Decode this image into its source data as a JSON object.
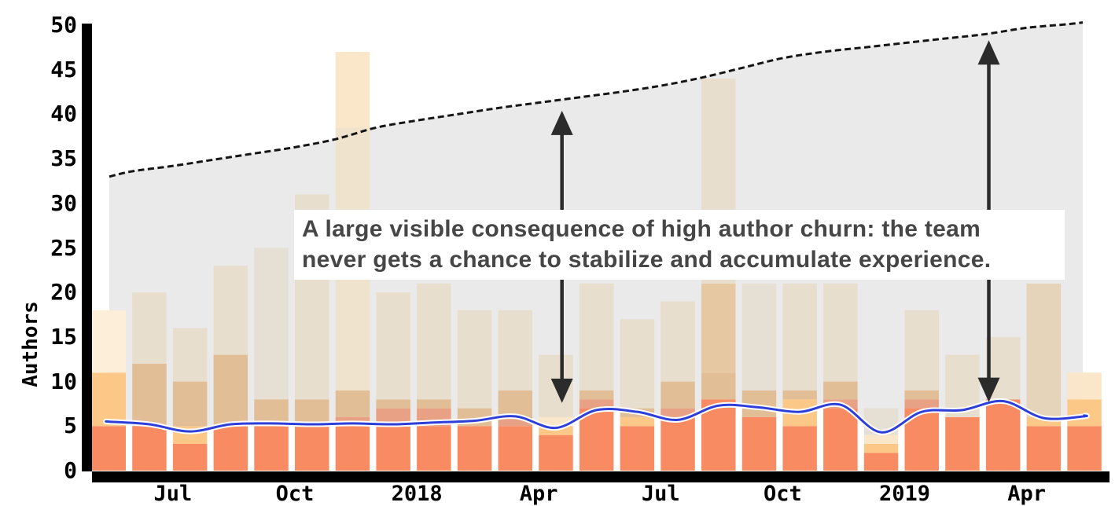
{
  "chart_data": {
    "type": "bar+line+area",
    "description": "Monthly author activity: stacked bars per month, blue line = active authors trend, gray area with dashed border = cumulative authors",
    "ylabel": "Authors",
    "y_axis": {
      "ticks": [
        0,
        5,
        10,
        15,
        20,
        25,
        30,
        35,
        40,
        45,
        50
      ],
      "min": 0,
      "max": 50
    },
    "x_axis": {
      "ticks": [
        {
          "label": "Jul",
          "month": 2
        },
        {
          "label": "Oct",
          "month": 5
        },
        {
          "label": "2018",
          "month": 8
        },
        {
          "label": "Apr",
          "month": 11
        },
        {
          "label": "Jul",
          "month": 14
        },
        {
          "label": "Oct",
          "month": 17
        },
        {
          "label": "2019",
          "month": 20
        },
        {
          "label": "Apr",
          "month": 23
        }
      ]
    },
    "months": [
      "2017-05",
      "2017-06",
      "2017-07",
      "2017-08",
      "2017-09",
      "2017-10",
      "2017-11",
      "2017-12",
      "2018-01",
      "2018-02",
      "2018-03",
      "2018-04",
      "2018-05",
      "2018-06",
      "2018-07",
      "2018-08",
      "2018-09",
      "2018-10",
      "2018-11",
      "2018-12",
      "2019-01",
      "2019-02",
      "2019-03",
      "2019-04",
      "2019-05"
    ],
    "colors": {
      "orange": "#F98B62",
      "ltorange": "#FBC888",
      "salmon": "#E8A184",
      "tan": "#E2BE97",
      "talltan": "#E6C9A3",
      "ghost": "#E8DECD",
      "ghostgray": "#E6DFD4",
      "ghosttan": "#E5D3BA",
      "cream": "#FAE7CA",
      "creammuted": "#F0E3CD",
      "pale": "#FDEEDA",
      "area_gray": "#EAEAEA",
      "blue": "#2E3FD9",
      "dash": "#151515",
      "arrow": "#2B2B2B",
      "annotation_text": "#464646"
    },
    "bars": [
      {
        "month": "2017-05",
        "segments": [
          {
            "color": "orange",
            "to": 5
          },
          {
            "color": "ltorange",
            "to": 11
          },
          {
            "color": "pale",
            "to": 18
          }
        ]
      },
      {
        "month": "2017-06",
        "segments": [
          {
            "color": "orange",
            "to": 5
          },
          {
            "color": "tan",
            "to": 12
          },
          {
            "color": "ghost",
            "to": 20
          }
        ]
      },
      {
        "month": "2017-07",
        "segments": [
          {
            "color": "orange",
            "to": 3
          },
          {
            "color": "ltorange",
            "to": 5
          },
          {
            "color": "tan",
            "to": 10
          },
          {
            "color": "ghost",
            "to": 16
          }
        ]
      },
      {
        "month": "2017-08",
        "segments": [
          {
            "color": "orange",
            "to": 5
          },
          {
            "color": "tan",
            "to": 13
          },
          {
            "color": "ghost",
            "to": 23
          }
        ]
      },
      {
        "month": "2017-09",
        "segments": [
          {
            "color": "orange",
            "to": 5
          },
          {
            "color": "tan",
            "to": 8
          },
          {
            "color": "ghostgray",
            "to": 25
          }
        ]
      },
      {
        "month": "2017-10",
        "segments": [
          {
            "color": "orange",
            "to": 5
          },
          {
            "color": "tan",
            "to": 8
          },
          {
            "color": "ghost",
            "to": 31
          }
        ]
      },
      {
        "month": "2017-11",
        "segments": [
          {
            "color": "orange",
            "to": 5
          },
          {
            "color": "salmon",
            "to": 6
          },
          {
            "color": "tan",
            "to": 9
          },
          {
            "color": "creammuted",
            "to": 38.5
          },
          {
            "color": "cream",
            "to": 47
          }
        ]
      },
      {
        "month": "2017-12",
        "segments": [
          {
            "color": "orange",
            "to": 5
          },
          {
            "color": "salmon",
            "to": 7
          },
          {
            "color": "tan",
            "to": 8
          },
          {
            "color": "ghost",
            "to": 20
          }
        ]
      },
      {
        "month": "2018-01",
        "segments": [
          {
            "color": "orange",
            "to": 5
          },
          {
            "color": "salmon",
            "to": 7
          },
          {
            "color": "tan",
            "to": 8
          },
          {
            "color": "ghost",
            "to": 21
          }
        ]
      },
      {
        "month": "2018-02",
        "segments": [
          {
            "color": "orange",
            "to": 5
          },
          {
            "color": "tan",
            "to": 7
          },
          {
            "color": "ghost",
            "to": 18
          }
        ]
      },
      {
        "month": "2018-03",
        "segments": [
          {
            "color": "orange",
            "to": 5
          },
          {
            "color": "salmon",
            "to": 6
          },
          {
            "color": "tan",
            "to": 9
          },
          {
            "color": "ghost",
            "to": 18
          }
        ]
      },
      {
        "month": "2018-04",
        "segments": [
          {
            "color": "orange",
            "to": 4
          },
          {
            "color": "ltorange",
            "to": 5
          },
          {
            "color": "cream",
            "to": 6
          },
          {
            "color": "ghost",
            "to": 13
          }
        ]
      },
      {
        "month": "2018-05",
        "segments": [
          {
            "color": "orange",
            "to": 7
          },
          {
            "color": "salmon",
            "to": 8
          },
          {
            "color": "tan",
            "to": 9
          },
          {
            "color": "ghost",
            "to": 21
          }
        ]
      },
      {
        "month": "2018-06",
        "segments": [
          {
            "color": "orange",
            "to": 5
          },
          {
            "color": "ltorange",
            "to": 6
          },
          {
            "color": "tan",
            "to": 7
          },
          {
            "color": "ghost",
            "to": 17
          }
        ]
      },
      {
        "month": "2018-07",
        "segments": [
          {
            "color": "orange",
            "to": 6
          },
          {
            "color": "salmon",
            "to": 7
          },
          {
            "color": "tan",
            "to": 10
          },
          {
            "color": "ghost",
            "to": 19
          }
        ]
      },
      {
        "month": "2018-08",
        "segments": [
          {
            "color": "orange",
            "to": 8
          },
          {
            "color": "tan",
            "to": 11
          },
          {
            "color": "talltan",
            "to": 21
          },
          {
            "color": "ghost",
            "to": 44
          }
        ]
      },
      {
        "month": "2018-09",
        "segments": [
          {
            "color": "orange",
            "to": 6
          },
          {
            "color": "tan",
            "to": 9
          },
          {
            "color": "ghostgray",
            "to": 21
          }
        ]
      },
      {
        "month": "2018-10",
        "segments": [
          {
            "color": "orange",
            "to": 5
          },
          {
            "color": "ltorange",
            "to": 8
          },
          {
            "color": "tan",
            "to": 9
          },
          {
            "color": "ghost",
            "to": 21
          }
        ]
      },
      {
        "month": "2018-11",
        "segments": [
          {
            "color": "orange",
            "to": 7
          },
          {
            "color": "salmon",
            "to": 8
          },
          {
            "color": "tan",
            "to": 10
          },
          {
            "color": "ghost",
            "to": 21
          }
        ]
      },
      {
        "month": "2018-12",
        "segments": [
          {
            "color": "orange",
            "to": 2
          },
          {
            "color": "ltorange",
            "to": 3
          },
          {
            "color": "cream",
            "to": 4
          },
          {
            "color": "ghostgray",
            "to": 7
          }
        ]
      },
      {
        "month": "2019-01",
        "segments": [
          {
            "color": "orange",
            "to": 7
          },
          {
            "color": "salmon",
            "to": 8
          },
          {
            "color": "tan",
            "to": 9
          },
          {
            "color": "ghost",
            "to": 18
          }
        ]
      },
      {
        "month": "2019-02",
        "segments": [
          {
            "color": "orange",
            "to": 6
          },
          {
            "color": "ghost",
            "to": 13
          }
        ]
      },
      {
        "month": "2019-03",
        "segments": [
          {
            "color": "orange",
            "to": 8
          },
          {
            "color": "ghost",
            "to": 15
          }
        ]
      },
      {
        "month": "2019-04",
        "segments": [
          {
            "color": "orange",
            "to": 5
          },
          {
            "color": "ltorange",
            "to": 6
          },
          {
            "color": "ghosttan",
            "to": 21
          }
        ]
      },
      {
        "month": "2019-05",
        "segments": [
          {
            "color": "orange",
            "to": 5
          },
          {
            "color": "ltorange",
            "to": 8
          },
          {
            "color": "cream",
            "to": 11
          }
        ]
      }
    ],
    "active_line": {
      "start": 5.5,
      "values": [
        5.5,
        5.2,
        4.4,
        5.2,
        5.3,
        5.2,
        5.3,
        5.2,
        5.4,
        5.6,
        6.1,
        4.8,
        6.8,
        6.6,
        5.7,
        7.3,
        7.1,
        6.6,
        7.4,
        4.3,
        6.6,
        6.8,
        7.8,
        5.9,
        6.1
      ],
      "end": 6.2
    },
    "cumulative_line": {
      "style": "dashed",
      "values": [
        33.0,
        33.6,
        34.2,
        34.9,
        35.6,
        36.3,
        37.2,
        38.5,
        39.3,
        40.0,
        40.7,
        41.3,
        41.9,
        42.5,
        43.2,
        44.1,
        45.2,
        46.3,
        47.0,
        47.5,
        48.0,
        48.5,
        49.0,
        49.7,
        50.1
      ],
      "end_value": 50.3
    },
    "annotation": {
      "line1": "A large visible consequence of high author churn: the team",
      "line2": "never gets a chance to stabilize and accumulate experience."
    },
    "arrows": [
      {
        "x_month": 11.57,
        "from_value": 7.6,
        "to_value": 40.4
      },
      {
        "x_month": 22.07,
        "from_value": 7.7,
        "to_value": 48.3
      }
    ]
  }
}
